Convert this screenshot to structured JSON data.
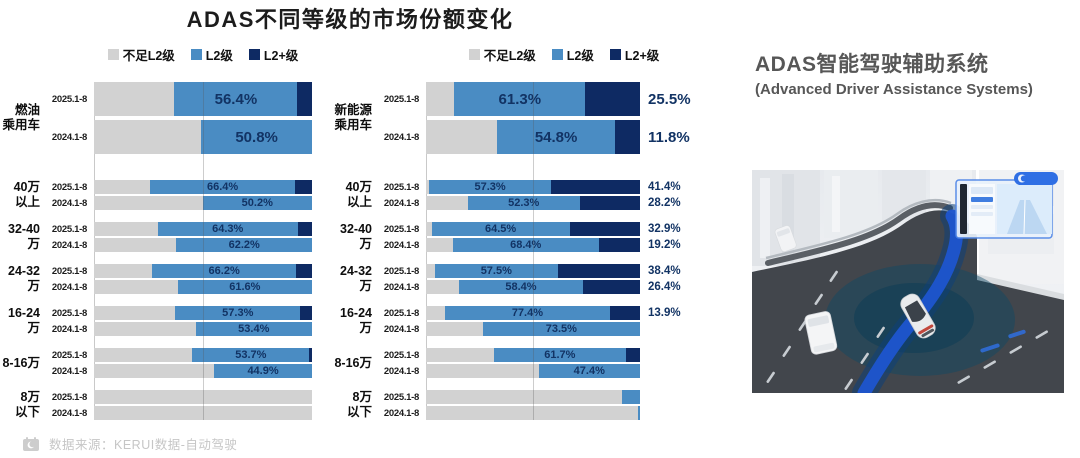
{
  "title": "ADAS不同等级的市场份额变化",
  "legend": {
    "items": [
      {
        "key": "below_l2",
        "label": "不足L2级"
      },
      {
        "key": "l2",
        "label": "L2级"
      },
      {
        "key": "l2_plus",
        "label": "L2+级"
      }
    ]
  },
  "colors": {
    "below_l2": "#d2d2d2",
    "l2": "#4a8cc3",
    "l2_plus": "#0e2a63",
    "value_text": "#123364",
    "title_text": "#1c1c1c",
    "right_title_text": "#575757",
    "source_text": "#c6c6c6"
  },
  "footer": {
    "source": "数据来源：KERUI数据-自动驾驶"
  },
  "right_panel": {
    "title": "ADAS智能驾驶辅助系统",
    "subtitle": "(Advanced Driver Assistance Systems)"
  },
  "chart_data": [
    {
      "type": "bar",
      "stacked": true,
      "orientation": "horizontal",
      "unit": "%",
      "xlim": [
        0,
        100
      ],
      "gridline_at": 50,
      "legend_position": "top",
      "series_names": [
        "不足L2级",
        "L2级",
        "L2+级"
      ],
      "l2_plus_labels_outside": false,
      "groups": [
        {
          "category": [
            "燃油",
            "乘用车"
          ],
          "rows": [
            {
              "period": "2025.1-8",
              "below_l2": 36.9,
              "l2": 56.4,
              "l2_plus": 6.7,
              "l2_label": "56.4%",
              "l2_plus_label": ""
            },
            {
              "period": "2024.1-8",
              "below_l2": 49.2,
              "l2": 50.8,
              "l2_plus": 0,
              "l2_label": "50.8%",
              "l2_plus_label": ""
            }
          ]
        },
        {
          "category": [
            "40万",
            "以上"
          ],
          "rows": [
            {
              "period": "2025.1-8",
              "below_l2": 25.8,
              "l2": 66.4,
              "l2_plus": 7.8,
              "l2_label": "66.4%",
              "l2_plus_label": ""
            },
            {
              "period": "2024.1-8",
              "below_l2": 49.8,
              "l2": 50.2,
              "l2_plus": 0,
              "l2_label": "50.2%",
              "l2_plus_label": ""
            }
          ]
        },
        {
          "category": [
            "32-40万"
          ],
          "rows": [
            {
              "period": "2025.1-8",
              "below_l2": 29.2,
              "l2": 64.3,
              "l2_plus": 6.5,
              "l2_label": "64.3%",
              "l2_plus_label": ""
            },
            {
              "period": "2024.1-8",
              "below_l2": 37.8,
              "l2": 62.2,
              "l2_plus": 0,
              "l2_label": "62.2%",
              "l2_plus_label": ""
            }
          ]
        },
        {
          "category": [
            "24-32万"
          ],
          "rows": [
            {
              "period": "2025.1-8",
              "below_l2": 26.6,
              "l2": 66.2,
              "l2_plus": 7.2,
              "l2_label": "66.2%",
              "l2_plus_label": ""
            },
            {
              "period": "2024.1-8",
              "below_l2": 38.4,
              "l2": 61.6,
              "l2_plus": 0,
              "l2_label": "61.6%",
              "l2_plus_label": ""
            }
          ]
        },
        {
          "category": [
            "16-24万"
          ],
          "rows": [
            {
              "period": "2025.1-8",
              "below_l2": 37.3,
              "l2": 57.3,
              "l2_plus": 5.4,
              "l2_label": "57.3%",
              "l2_plus_label": ""
            },
            {
              "period": "2024.1-8",
              "below_l2": 46.6,
              "l2": 53.4,
              "l2_plus": 0,
              "l2_label": "53.4%",
              "l2_plus_label": ""
            }
          ]
        },
        {
          "category": [
            "8-16万"
          ],
          "rows": [
            {
              "period": "2025.1-8",
              "below_l2": 45.1,
              "l2": 53.7,
              "l2_plus": 1.2,
              "l2_label": "53.7%",
              "l2_plus_label": ""
            },
            {
              "period": "2024.1-8",
              "below_l2": 55.1,
              "l2": 44.9,
              "l2_plus": 0,
              "l2_label": "44.9%",
              "l2_plus_label": ""
            }
          ]
        },
        {
          "category": [
            "8万",
            "以下"
          ],
          "rows": [
            {
              "period": "2025.1-8",
              "below_l2": 100,
              "l2": 0,
              "l2_plus": 0,
              "l2_label": "",
              "l2_plus_label": ""
            },
            {
              "period": "2024.1-8",
              "below_l2": 100,
              "l2": 0,
              "l2_plus": 0,
              "l2_label": "",
              "l2_plus_label": ""
            }
          ]
        }
      ]
    },
    {
      "type": "bar",
      "stacked": true,
      "orientation": "horizontal",
      "unit": "%",
      "xlim": [
        0,
        100
      ],
      "gridline_at": 50,
      "legend_position": "top",
      "series_names": [
        "不足L2级",
        "L2级",
        "L2+级"
      ],
      "l2_plus_labels_outside": true,
      "groups": [
        {
          "category": [
            "新能源",
            "乘用车"
          ],
          "rows": [
            {
              "period": "2025.1-8",
              "below_l2": 13.2,
              "l2": 61.3,
              "l2_plus": 25.5,
              "l2_label": "61.3%",
              "l2_plus_label": "25.5%"
            },
            {
              "period": "2024.1-8",
              "below_l2": 33.4,
              "l2": 54.8,
              "l2_plus": 11.8,
              "l2_label": "54.8%",
              "l2_plus_label": "11.8%"
            }
          ]
        },
        {
          "category": [
            "40万",
            "以上"
          ],
          "rows": [
            {
              "period": "2025.1-8",
              "below_l2": 1.3,
              "l2": 57.3,
              "l2_plus": 41.4,
              "l2_label": "57.3%",
              "l2_plus_label": "41.4%"
            },
            {
              "period": "2024.1-8",
              "below_l2": 19.5,
              "l2": 52.3,
              "l2_plus": 28.2,
              "l2_label": "52.3%",
              "l2_plus_label": "28.2%"
            }
          ]
        },
        {
          "category": [
            "32-40万"
          ],
          "rows": [
            {
              "period": "2025.1-8",
              "below_l2": 2.6,
              "l2": 64.5,
              "l2_plus": 32.9,
              "l2_label": "64.5%",
              "l2_plus_label": "32.9%"
            },
            {
              "period": "2024.1-8",
              "below_l2": 12.4,
              "l2": 68.4,
              "l2_plus": 19.2,
              "l2_label": "68.4%",
              "l2_plus_label": "19.2%"
            }
          ]
        },
        {
          "category": [
            "24-32万"
          ],
          "rows": [
            {
              "period": "2025.1-8",
              "below_l2": 4.1,
              "l2": 57.5,
              "l2_plus": 38.4,
              "l2_label": "57.5%",
              "l2_plus_label": "38.4%"
            },
            {
              "period": "2024.1-8",
              "below_l2": 15.2,
              "l2": 58.4,
              "l2_plus": 26.4,
              "l2_label": "58.4%",
              "l2_plus_label": "26.4%"
            }
          ]
        },
        {
          "category": [
            "16-24万"
          ],
          "rows": [
            {
              "period": "2025.1-8",
              "below_l2": 8.7,
              "l2": 77.4,
              "l2_plus": 13.9,
              "l2_label": "77.4%",
              "l2_plus_label": "13.9%"
            },
            {
              "period": "2024.1-8",
              "below_l2": 26.5,
              "l2": 73.5,
              "l2_plus": 0,
              "l2_label": "73.5%",
              "l2_plus_label": ""
            }
          ]
        },
        {
          "category": [
            "8-16万"
          ],
          "rows": [
            {
              "period": "2025.1-8",
              "below_l2": 31.7,
              "l2": 61.7,
              "l2_plus": 6.6,
              "l2_label": "61.7%",
              "l2_plus_label": ""
            },
            {
              "period": "2024.1-8",
              "below_l2": 52.6,
              "l2": 47.4,
              "l2_plus": 0,
              "l2_label": "47.4%",
              "l2_plus_label": ""
            }
          ]
        },
        {
          "category": [
            "8万",
            "以下"
          ],
          "rows": [
            {
              "period": "2025.1-8",
              "below_l2": 91.5,
              "l2": 8.5,
              "l2_plus": 0,
              "l2_label": "",
              "l2_plus_label": ""
            },
            {
              "period": "2024.1-8",
              "below_l2": 99,
              "l2": 1,
              "l2_plus": 0,
              "l2_label": "",
              "l2_plus_label": ""
            }
          ]
        }
      ]
    }
  ]
}
